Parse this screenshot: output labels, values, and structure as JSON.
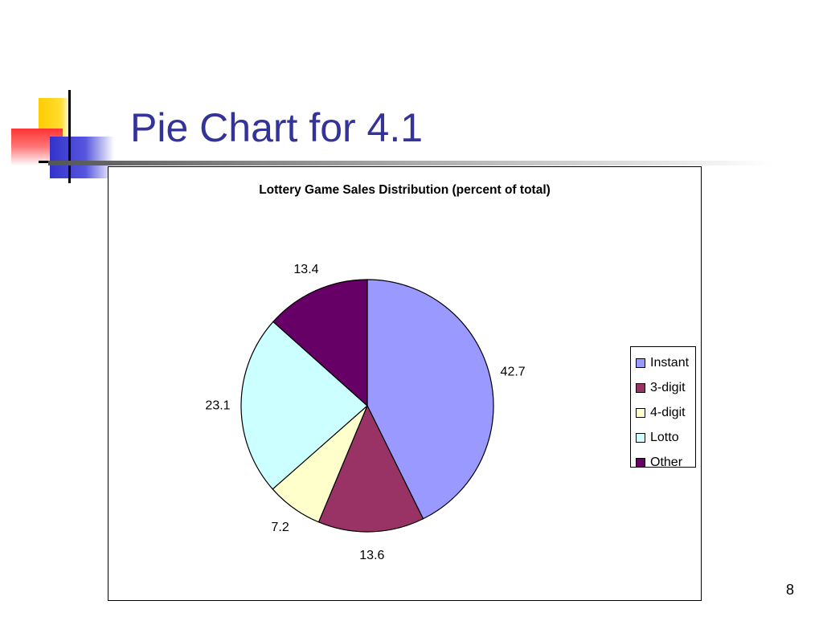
{
  "slide": {
    "title": "Pie Chart for 4.1",
    "page_number": "8"
  },
  "colors": {
    "title": "#333399",
    "deco_yellow": "#FFCC00",
    "deco_red": "#FF3333",
    "deco_blue": "#3333CC"
  },
  "chart_data": {
    "type": "pie",
    "title": "Lottery Game Sales Distribution (percent of total)",
    "categories": [
      "Instant",
      "3-digit",
      "4-digit",
      "Lotto",
      "Other"
    ],
    "values": [
      42.7,
      13.6,
      7.2,
      23.1,
      13.4
    ],
    "value_labels": [
      "42.7",
      "13.6",
      "7.2",
      "23.1",
      "13.4"
    ],
    "colors": [
      "#9999FF",
      "#993366",
      "#FFFFCC",
      "#CCFFFF",
      "#660066"
    ],
    "legend_placement": "right",
    "start_angle": "12 o'clock",
    "direction": "clockwise"
  }
}
